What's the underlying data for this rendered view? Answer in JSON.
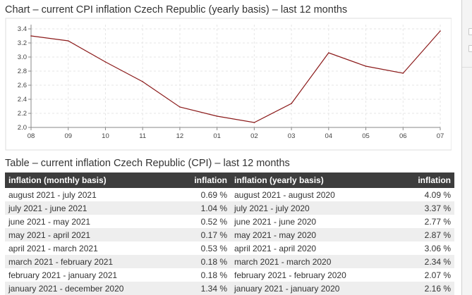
{
  "chart": {
    "heading": "Chart – current CPI inflation Czech Republic (yearly basis) – last 12 months"
  },
  "table": {
    "heading": "Table – current inflation Czech Republic (CPI) – last 12 months",
    "headers": {
      "monthly_label": "inflation (monthly basis)",
      "monthly_value": "inflation",
      "yearly_label": "inflation (yearly basis)",
      "yearly_value": "inflation"
    },
    "rows": [
      {
        "monthly_period": "august 2021 - july 2021",
        "monthly_value": "0.69 %",
        "yearly_period": "august 2021 - august 2020",
        "yearly_value": "4.09 %"
      },
      {
        "monthly_period": "july 2021 - june 2021",
        "monthly_value": "1.04 %",
        "yearly_period": "july 2021 - july 2020",
        "yearly_value": "3.37 %"
      },
      {
        "monthly_period": "june 2021 - may 2021",
        "monthly_value": "0.52 %",
        "yearly_period": "june 2021 - june 2020",
        "yearly_value": "2.77 %"
      },
      {
        "monthly_period": "may 2021 - april 2021",
        "monthly_value": "0.17 %",
        "yearly_period": "may 2021 - may 2020",
        "yearly_value": "2.87 %"
      },
      {
        "monthly_period": "april 2021 - march 2021",
        "monthly_value": "0.53 %",
        "yearly_period": "april 2021 - april 2020",
        "yearly_value": "3.06 %"
      },
      {
        "monthly_period": "march 2021 - february 2021",
        "monthly_value": "0.18 %",
        "yearly_period": "march 2021 - march 2020",
        "yearly_value": "2.34 %"
      },
      {
        "monthly_period": "february 2021 - january 2021",
        "monthly_value": "0.18 %",
        "yearly_period": "february 2021 - february 2020",
        "yearly_value": "2.07 %"
      },
      {
        "monthly_period": "january 2021 - december 2020",
        "monthly_value": "1.34 %",
        "yearly_period": "january 2021 - january 2020",
        "yearly_value": "2.16 %"
      }
    ]
  },
  "chart_data": {
    "type": "line",
    "title": "",
    "xlabel": "",
    "ylabel": "",
    "x": [
      "08",
      "09",
      "10",
      "11",
      "12",
      "01",
      "02",
      "03",
      "04",
      "05",
      "06",
      "07"
    ],
    "series": [
      {
        "values": [
          3.3,
          3.23,
          2.93,
          2.65,
          2.29,
          2.16,
          2.07,
          2.34,
          3.06,
          2.87,
          2.77,
          3.37
        ]
      }
    ],
    "ylim": [
      2.0,
      3.4
    ],
    "yticks": [
      "2.0",
      "2.2",
      "2.4",
      "2.6",
      "2.8",
      "3.0",
      "3.2",
      "3.4"
    ],
    "grid": true,
    "line_color": "#8b1a1a"
  }
}
